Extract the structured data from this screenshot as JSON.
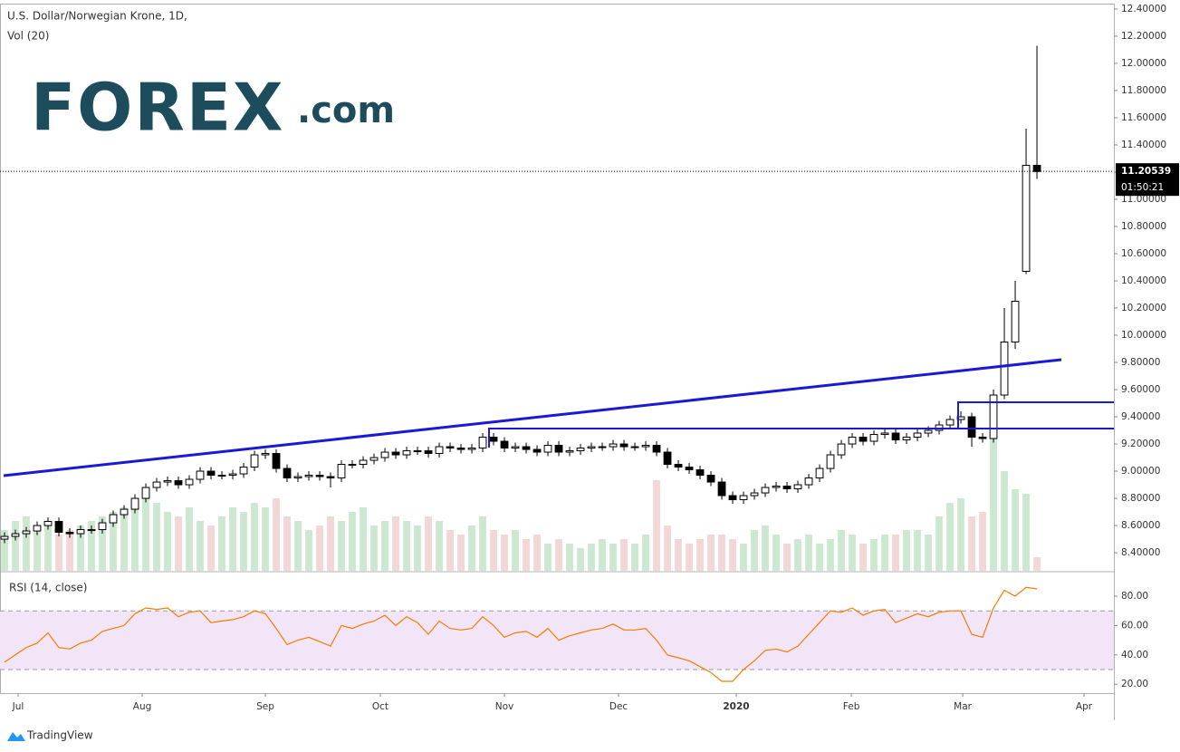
{
  "chart_data": {
    "type": "candlestick",
    "title": "U.S. Dollar/Norwegian Krone, 1D,",
    "volume_label": "Vol (20)",
    "logo": "FOREX",
    "logo_suffix": ".com",
    "x": [
      0,
      1,
      2,
      3,
      4,
      5,
      6,
      7,
      8,
      9,
      10,
      11,
      12,
      13,
      14,
      15,
      16,
      17,
      18,
      19,
      20,
      21,
      22,
      23,
      24,
      25,
      26,
      27,
      28,
      29,
      30,
      31,
      32,
      33,
      34,
      35,
      36,
      37,
      38,
      39,
      40,
      41,
      42,
      43,
      44,
      45,
      46,
      47,
      48,
      49,
      50,
      51,
      52,
      53,
      54,
      55,
      56,
      57,
      58,
      59,
      60,
      61,
      62,
      63,
      64,
      65,
      66,
      67,
      68,
      69,
      70,
      71,
      72,
      73,
      74,
      75,
      76,
      77,
      78,
      79,
      80,
      81,
      82,
      83,
      84,
      85,
      86,
      87,
      88,
      89,
      90,
      91,
      92,
      93,
      94,
      95
    ],
    "open": [
      8.5,
      8.52,
      8.54,
      8.56,
      8.6,
      8.63,
      8.55,
      8.54,
      8.57,
      8.57,
      8.62,
      8.68,
      8.72,
      8.8,
      8.88,
      8.92,
      8.93,
      8.9,
      8.94,
      9.0,
      8.97,
      8.97,
      8.98,
      9.03,
      9.12,
      9.13,
      9.02,
      8.95,
      8.96,
      8.97,
      8.96,
      8.95,
      9.05,
      9.05,
      9.08,
      9.1,
      9.14,
      9.12,
      9.15,
      9.15,
      9.13,
      9.18,
      9.17,
      9.16,
      9.17,
      9.25,
      9.22,
      9.17,
      9.18,
      9.16,
      9.14,
      9.19,
      9.14,
      9.15,
      9.17,
      9.18,
      9.18,
      9.2,
      9.18,
      9.18,
      9.19,
      9.14,
      9.05,
      9.03,
      9.01,
      8.97,
      8.92,
      8.82,
      8.79,
      8.82,
      8.84,
      8.88,
      8.89,
      8.87,
      8.9,
      8.95,
      9.02,
      9.12,
      9.2,
      9.25,
      9.22,
      9.27,
      9.28,
      9.23,
      9.25,
      9.28,
      9.3,
      9.34,
      9.38,
      9.4,
      9.25,
      9.24,
      9.56,
      9.95,
      10.47,
      11.25
    ],
    "high": [
      8.55,
      8.57,
      8.59,
      8.63,
      8.66,
      8.66,
      8.58,
      8.6,
      8.6,
      8.65,
      8.71,
      8.75,
      8.83,
      8.91,
      8.95,
      8.96,
      8.96,
      8.97,
      9.03,
      9.03,
      9.0,
      9.01,
      9.06,
      9.15,
      9.16,
      9.16,
      9.05,
      8.99,
      9.0,
      9.0,
      8.99,
      9.08,
      9.08,
      9.11,
      9.13,
      9.17,
      9.17,
      9.18,
      9.18,
      9.18,
      9.21,
      9.21,
      9.2,
      9.2,
      9.28,
      9.28,
      9.25,
      9.21,
      9.21,
      9.19,
      9.22,
      9.22,
      9.18,
      9.2,
      9.21,
      9.21,
      9.23,
      9.23,
      9.21,
      9.22,
      9.22,
      9.17,
      9.08,
      9.06,
      9.04,
      9.0,
      8.95,
      8.85,
      8.85,
      8.87,
      8.91,
      8.92,
      8.92,
      8.93,
      8.98,
      9.05,
      9.15,
      9.23,
      9.28,
      9.28,
      9.3,
      9.31,
      9.31,
      9.28,
      9.31,
      9.33,
      9.37,
      9.41,
      9.44,
      9.43,
      9.28,
      9.6,
      10.2,
      10.4,
      11.52,
      12.13
    ],
    "low": [
      8.47,
      8.49,
      8.51,
      8.53,
      8.57,
      8.52,
      8.51,
      8.51,
      8.54,
      8.54,
      8.59,
      8.65,
      8.69,
      8.77,
      8.85,
      8.89,
      8.87,
      8.87,
      8.91,
      8.94,
      8.94,
      8.94,
      8.95,
      9.0,
      9.09,
      8.99,
      8.92,
      8.92,
      8.93,
      8.93,
      8.88,
      8.92,
      9.02,
      9.02,
      9.05,
      9.07,
      9.09,
      9.09,
      9.12,
      9.1,
      9.1,
      9.14,
      9.13,
      9.13,
      9.14,
      9.19,
      9.14,
      9.14,
      9.13,
      9.11,
      9.11,
      9.11,
      9.11,
      9.12,
      9.14,
      9.15,
      9.15,
      9.15,
      9.15,
      9.15,
      9.11,
      9.02,
      9.0,
      8.98,
      8.94,
      8.89,
      8.79,
      8.76,
      8.76,
      8.79,
      8.81,
      8.85,
      8.84,
      8.84,
      8.87,
      8.92,
      8.99,
      9.09,
      9.17,
      9.19,
      9.19,
      9.24,
      9.2,
      9.2,
      9.22,
      9.25,
      9.27,
      9.31,
      9.35,
      9.18,
      9.21,
      9.21,
      9.53,
      9.9,
      10.45,
      11.15
    ],
    "close": [
      8.52,
      8.54,
      8.56,
      8.6,
      8.63,
      8.55,
      8.54,
      8.57,
      8.57,
      8.62,
      8.68,
      8.72,
      8.8,
      8.88,
      8.92,
      8.93,
      8.9,
      8.94,
      9.0,
      8.97,
      8.97,
      8.98,
      9.03,
      9.12,
      9.13,
      9.02,
      8.95,
      8.96,
      8.97,
      8.96,
      8.95,
      9.05,
      9.05,
      9.08,
      9.1,
      9.14,
      9.12,
      9.15,
      9.15,
      9.13,
      9.18,
      9.17,
      9.16,
      9.17,
      9.25,
      9.22,
      9.17,
      9.18,
      9.16,
      9.14,
      9.19,
      9.14,
      9.15,
      9.17,
      9.18,
      9.18,
      9.2,
      9.18,
      9.18,
      9.19,
      9.14,
      9.05,
      9.03,
      9.01,
      8.97,
      8.92,
      8.82,
      8.79,
      8.82,
      8.84,
      8.88,
      8.89,
      8.87,
      8.9,
      8.95,
      9.02,
      9.12,
      9.2,
      9.25,
      9.22,
      9.27,
      9.28,
      9.23,
      9.25,
      9.28,
      9.3,
      9.34,
      9.38,
      9.4,
      9.25,
      9.24,
      9.56,
      9.95,
      10.25,
      11.25,
      11.205
    ],
    "volume": [
      45,
      55,
      60,
      50,
      55,
      40,
      45,
      50,
      55,
      60,
      65,
      70,
      80,
      90,
      75,
      65,
      60,
      70,
      55,
      50,
      60,
      70,
      65,
      75,
      70,
      80,
      60,
      55,
      45,
      50,
      60,
      55,
      65,
      70,
      50,
      55,
      60,
      55,
      50,
      60,
      55,
      45,
      40,
      50,
      60,
      45,
      40,
      45,
      35,
      40,
      30,
      35,
      30,
      25,
      30,
      35,
      30,
      35,
      30,
      40,
      100,
      50,
      35,
      30,
      35,
      40,
      40,
      35,
      30,
      45,
      50,
      40,
      30,
      35,
      40,
      30,
      35,
      45,
      40,
      30,
      35,
      40,
      40,
      45,
      45,
      40,
      60,
      75,
      80,
      60,
      65,
      155,
      110,
      90,
      85,
      15
    ],
    "volume_lim": [
      0,
      625
    ],
    "rsi_label": "RSI (14, close)",
    "rsi": [
      35,
      40,
      45,
      48,
      55,
      45,
      44,
      48,
      50,
      56,
      58,
      60,
      68,
      72,
      71,
      72,
      66,
      69,
      70,
      62,
      63,
      64,
      66,
      70,
      68,
      58,
      47,
      50,
      52,
      49,
      46,
      60,
      58,
      61,
      63,
      67,
      60,
      66,
      62,
      54,
      63,
      58,
      57,
      58,
      66,
      60,
      52,
      55,
      56,
      52,
      58,
      50,
      53,
      55,
      57,
      58,
      61,
      57,
      57,
      58,
      50,
      40,
      38,
      36,
      32,
      28,
      22,
      22,
      30,
      36,
      43,
      44,
      42,
      46,
      54,
      62,
      70,
      69,
      72,
      67,
      70,
      71,
      62,
      65,
      68,
      66,
      69,
      70,
      70,
      54,
      52,
      72,
      84,
      80,
      86,
      85
    ],
    "rsi_lim": [
      13.95,
      96.05
    ],
    "rsi_band": [
      30,
      70
    ],
    "rsi_ticks": [
      {
        "value": 20,
        "label": "20.00"
      },
      {
        "value": 40,
        "label": "40.00"
      },
      {
        "value": 60,
        "label": "60.00"
      },
      {
        "value": 80,
        "label": "80.00"
      }
    ],
    "rsi_color": "#f57c00",
    "up_color": "#ffffff",
    "down_color": "#000000",
    "volume_up_color": "#cde8d0",
    "volume_down_color": "#f3d6d6",
    "ylim": [
      8.267,
      12.433
    ],
    "yticks": [
      {
        "value": 8.4,
        "label": "8.40000"
      },
      {
        "value": 8.6,
        "label": "8.60000"
      },
      {
        "value": 8.8,
        "label": "8.80000"
      },
      {
        "value": 9.0,
        "label": "9.00000"
      },
      {
        "value": 9.2,
        "label": "9.20000"
      },
      {
        "value": 9.4,
        "label": "9.40000"
      },
      {
        "value": 9.6,
        "label": "9.60000"
      },
      {
        "value": 9.8,
        "label": "9.80000"
      },
      {
        "value": 10.0,
        "label": "10.00000"
      },
      {
        "value": 10.2,
        "label": "10.20000"
      },
      {
        "value": 10.4,
        "label": "10.40000"
      },
      {
        "value": 10.6,
        "label": "10.60000"
      },
      {
        "value": 10.8,
        "label": "10.80000"
      },
      {
        "value": 11.0,
        "label": "11.00000"
      },
      {
        "value": 11.2,
        "label": "11.20000"
      },
      {
        "value": 11.4,
        "label": "11.40000"
      },
      {
        "value": 11.6,
        "label": "11.60000"
      },
      {
        "value": 11.8,
        "label": "11.80000"
      },
      {
        "value": 12.0,
        "label": "12.00000"
      },
      {
        "value": 12.2,
        "label": "12.20000"
      },
      {
        "value": 12.4,
        "label": "12.40000"
      }
    ],
    "xlim": [
      -0.417,
      102.08
    ],
    "xticks": [
      {
        "value": 1.25,
        "label": "Jul"
      },
      {
        "value": 12.67,
        "label": "Aug"
      },
      {
        "value": 24,
        "label": "Sep"
      },
      {
        "value": 34.58,
        "label": "Oct"
      },
      {
        "value": 46,
        "label": "Nov"
      },
      {
        "value": 56.5,
        "label": "Dec"
      },
      {
        "value": 67.33,
        "label": "2020"
      },
      {
        "value": 77.92,
        "label": "Feb"
      },
      {
        "value": 88.17,
        "label": "Mar"
      },
      {
        "value": 99.33,
        "label": "Apr"
      }
    ],
    "last_price": 11.20539,
    "countdown": "01:50:21",
    "footer": "TradingView"
  }
}
